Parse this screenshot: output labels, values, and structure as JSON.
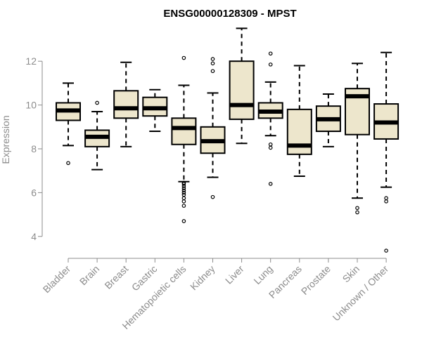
{
  "chart_data": {
    "type": "boxplot",
    "title": "ENSG00000128309 - MPST",
    "xlabel": "",
    "ylabel": "Expression",
    "ylim": [
      3.0,
      13.8
    ],
    "yticks": [
      4,
      6,
      8,
      10,
      12
    ],
    "grid": false,
    "legend": "none",
    "box_fill": "#ede6cc",
    "categories": [
      "Bladder",
      "Brain",
      "Breast",
      "Gastric",
      "Hematopoietic cells",
      "Kidney",
      "Liver",
      "Lung",
      "Pancreas",
      "Prostate",
      "Skin",
      "Unknown / Other"
    ],
    "boxes": [
      {
        "category": "Bladder",
        "whisker_low": 8.15,
        "q1": 9.3,
        "median": 9.75,
        "q3": 10.1,
        "whisker_high": 11.0,
        "outliers": [
          7.35
        ]
      },
      {
        "category": "Brain",
        "whisker_low": 7.05,
        "q1": 8.1,
        "median": 8.55,
        "q3": 8.85,
        "whisker_high": 9.7,
        "outliers": [
          10.1
        ]
      },
      {
        "category": "Breast",
        "whisker_low": 8.1,
        "q1": 9.4,
        "median": 9.85,
        "q3": 10.65,
        "whisker_high": 11.95,
        "outliers": []
      },
      {
        "category": "Gastric",
        "whisker_low": 8.8,
        "q1": 9.5,
        "median": 9.85,
        "q3": 10.35,
        "whisker_high": 10.7,
        "outliers": []
      },
      {
        "category": "Hematopoietic cells",
        "whisker_low": 6.5,
        "q1": 8.2,
        "median": 8.95,
        "q3": 9.4,
        "whisker_high": 10.9,
        "outliers": [
          12.15,
          6.45,
          6.4,
          6.3,
          6.2,
          6.1,
          6.0,
          5.9,
          5.75,
          5.6,
          5.4,
          4.7
        ]
      },
      {
        "category": "Kidney",
        "whisker_low": 6.7,
        "q1": 7.8,
        "median": 8.35,
        "q3": 9.0,
        "whisker_high": 10.55,
        "outliers": [
          12.1,
          11.9,
          11.55,
          5.8
        ]
      },
      {
        "category": "Liver",
        "whisker_low": 8.25,
        "q1": 9.35,
        "median": 10.0,
        "q3": 12.0,
        "whisker_high": 13.5,
        "outliers": []
      },
      {
        "category": "Lung",
        "whisker_low": 8.6,
        "q1": 9.4,
        "median": 9.7,
        "q3": 10.1,
        "whisker_high": 11.05,
        "outliers": [
          12.35,
          11.85,
          8.2,
          8.05,
          6.4
        ]
      },
      {
        "category": "Pancreas",
        "whisker_low": 6.75,
        "q1": 7.75,
        "median": 8.15,
        "q3": 9.8,
        "whisker_high": 11.8,
        "outliers": []
      },
      {
        "category": "Prostate",
        "whisker_low": 8.1,
        "q1": 8.8,
        "median": 9.35,
        "q3": 9.95,
        "whisker_high": 10.5,
        "outliers": []
      },
      {
        "category": "Skin",
        "whisker_low": 5.75,
        "q1": 8.65,
        "median": 10.4,
        "q3": 10.75,
        "whisker_high": 11.9,
        "outliers": [
          5.3,
          5.1
        ]
      },
      {
        "category": "Unknown / Other",
        "whisker_low": 6.25,
        "q1": 8.45,
        "median": 9.2,
        "q3": 10.05,
        "whisker_high": 12.4,
        "outliers": [
          5.75,
          5.6,
          3.35
        ]
      }
    ]
  }
}
